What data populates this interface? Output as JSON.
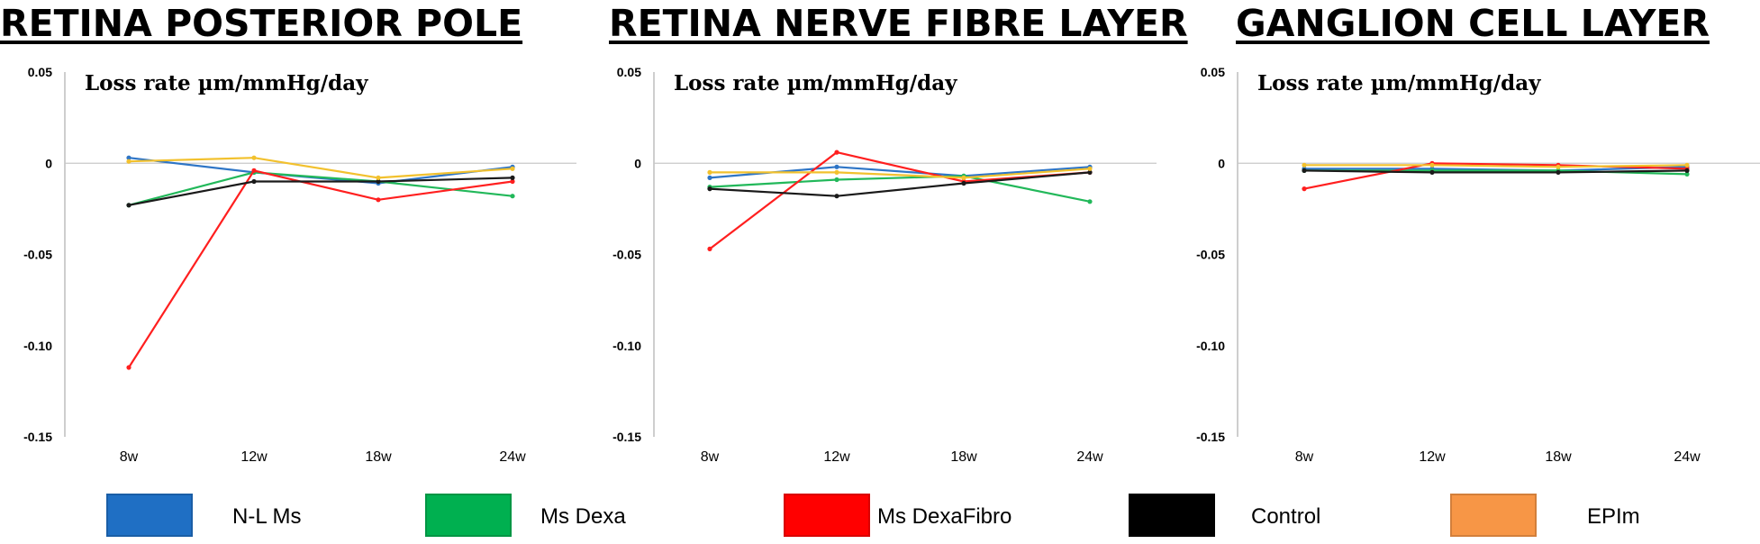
{
  "chart_data": [
    {
      "type": "line",
      "title": "RETINA POSTERIOR POLE",
      "subtitle": "Loss rate µm/mmHg/day",
      "categories": [
        "8w",
        "12w",
        "18w",
        "24w"
      ],
      "yticks": [
        "0.05",
        "0",
        "-0.05",
        "-0.10",
        "-0.15"
      ],
      "ylim": [
        -0.15,
        0.05
      ],
      "series": [
        {
          "name": "N-L Ms",
          "values": [
            0.003,
            -0.005,
            -0.011,
            -0.002
          ]
        },
        {
          "name": "Ms Dexa",
          "values": [
            -0.023,
            -0.005,
            -0.01,
            -0.018
          ]
        },
        {
          "name": "Ms DexaFibro",
          "values": [
            -0.112,
            -0.004,
            -0.02,
            -0.01
          ]
        },
        {
          "name": "Control",
          "values": [
            -0.023,
            -0.01,
            -0.01,
            -0.008
          ]
        },
        {
          "name": "EPIm",
          "values": [
            0.001,
            0.003,
            -0.008,
            -0.003
          ]
        }
      ]
    },
    {
      "type": "line",
      "title": "RETINA NERVE FIBRE LAYER",
      "subtitle": "Loss rate µm/mmHg/day",
      "categories": [
        "8w",
        "12w",
        "18w",
        "24w"
      ],
      "yticks": [
        "0.05",
        "0",
        "-0.05",
        "-0.10",
        "-0.15"
      ],
      "ylim": [
        -0.15,
        0.05
      ],
      "series": [
        {
          "name": "N-L Ms",
          "values": [
            -0.008,
            -0.002,
            -0.007,
            -0.002
          ]
        },
        {
          "name": "Ms Dexa",
          "values": [
            -0.013,
            -0.009,
            -0.007,
            -0.021
          ]
        },
        {
          "name": "Ms DexaFibro",
          "values": [
            -0.047,
            0.006,
            -0.01,
            -0.005
          ]
        },
        {
          "name": "Control",
          "values": [
            -0.014,
            -0.018,
            -0.011,
            -0.005
          ]
        },
        {
          "name": "EPIm",
          "values": [
            -0.005,
            -0.005,
            -0.008,
            -0.003
          ]
        }
      ]
    },
    {
      "type": "line",
      "title": "GANGLION CELL LAYER",
      "subtitle": "Loss rate µm/mmHg/day",
      "categories": [
        "8w",
        "12w",
        "18w",
        "24w"
      ],
      "yticks": [
        "0.05",
        "0",
        "-0.05",
        "-0.10",
        "-0.15"
      ],
      "ylim": [
        -0.15,
        0.05
      ],
      "series": [
        {
          "name": "N-L Ms",
          "values": [
            -0.003,
            -0.003,
            -0.004,
            -0.002
          ]
        },
        {
          "name": "Ms Dexa",
          "values": [
            -0.004,
            -0.004,
            -0.004,
            -0.006
          ]
        },
        {
          "name": "Ms DexaFibro",
          "values": [
            -0.014,
            0.0,
            -0.001,
            -0.003
          ]
        },
        {
          "name": "Control",
          "values": [
            -0.004,
            -0.005,
            -0.005,
            -0.004
          ]
        },
        {
          "name": "EPIm",
          "values": [
            -0.001,
            -0.001,
            -0.002,
            -0.001
          ]
        }
      ]
    }
  ],
  "legend": [
    {
      "label": "N-L Ms",
      "color": "#1f6fc4"
    },
    {
      "label": "Ms Dexa",
      "color": "#00b050"
    },
    {
      "label": "Ms DexaFibro",
      "color": "#ff0000"
    },
    {
      "label": "Control",
      "color": "#000000"
    },
    {
      "label": "EPIm",
      "color": "#f79646"
    }
  ],
  "line_colors": {
    "N-L Ms": "#2e75c6",
    "Ms Dexa": "#22b85a",
    "Ms DexaFibro": "#ff1f1f",
    "Control": "#1a1a1a",
    "EPIm": "#f2c12e"
  }
}
